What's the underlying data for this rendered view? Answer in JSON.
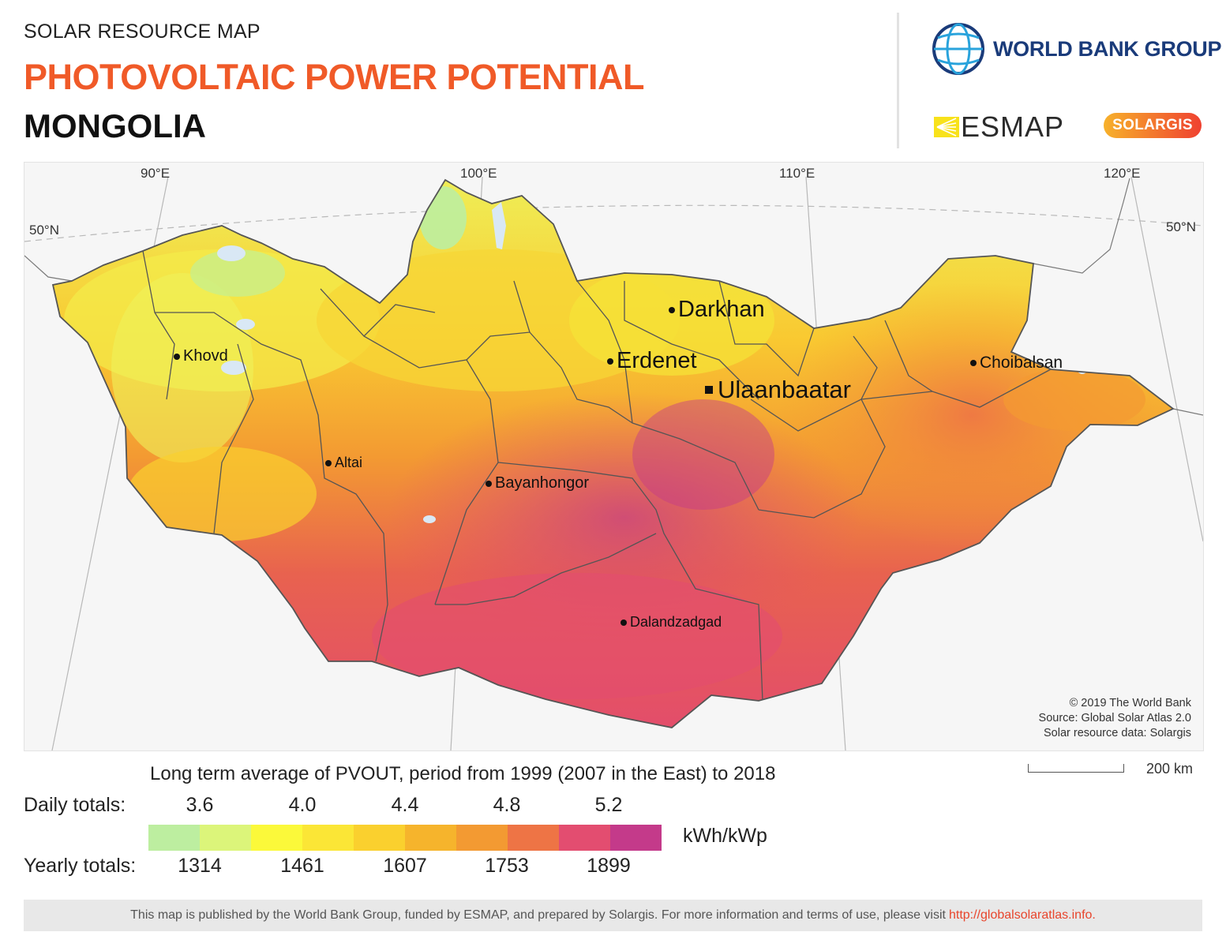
{
  "header": {
    "kicker": "SOLAR RESOURCE MAP",
    "title": "PHOTOVOLTAIC POWER POTENTIAL",
    "country": "MONGOLIA"
  },
  "logos": {
    "world_bank": "WORLD BANK GROUP",
    "esmap": "ESMAP",
    "solargis": "SOLARGIS"
  },
  "map": {
    "graticule": {
      "longitudes": [
        "90°E",
        "100°E",
        "110°E",
        "120°E"
      ],
      "latitude_left": "50°N",
      "latitude_right": "50°N"
    },
    "cities": [
      {
        "name": "Darkhan",
        "marker": "dot",
        "size": "large"
      },
      {
        "name": "Erdenet",
        "marker": "dot",
        "size": "large"
      },
      {
        "name": "Ulaanbaatar",
        "marker": "square",
        "size": "large"
      },
      {
        "name": "Khovd",
        "marker": "dot",
        "size": "small"
      },
      {
        "name": "Choibalsan",
        "marker": "dot",
        "size": "small"
      },
      {
        "name": "Altai",
        "marker": "dot",
        "size": "small"
      },
      {
        "name": "Bayanhongor",
        "marker": "dot",
        "size": "small"
      },
      {
        "name": "Dalandzadgad",
        "marker": "dot",
        "size": "small"
      }
    ],
    "credits": [
      "© 2019 The World Bank",
      "Source: Global Solar Atlas 2.0",
      "Solar resource data: Solargis"
    ],
    "scale": "200 km",
    "colors": {
      "background": "#f6f6f6",
      "water": "#d9e8f5",
      "border": "#555555"
    }
  },
  "legend": {
    "caption": "Long term average of PVOUT, period from 1999 (2007 in the East) to 2018",
    "daily_label": "Daily totals:",
    "daily_values": [
      "3.6",
      "4.0",
      "4.4",
      "4.8",
      "5.2"
    ],
    "yearly_label": "Yearly totals:",
    "yearly_values": [
      "1314",
      "1461",
      "1607",
      "1753",
      "1899"
    ],
    "unit": "kWh/kWp",
    "colors": [
      "#bdeea0",
      "#dcf57a",
      "#fbf93a",
      "#fbe636",
      "#fad02e",
      "#f6b42c",
      "#f39a32",
      "#ee7445",
      "#e34d70",
      "#c43a8a"
    ]
  },
  "footer": {
    "text": "This map is published by the World Bank Group, funded by ESMAP, and prepared by Solargis. For more information and terms of use, please visit",
    "link": "http://globalsolaratlas.info."
  }
}
